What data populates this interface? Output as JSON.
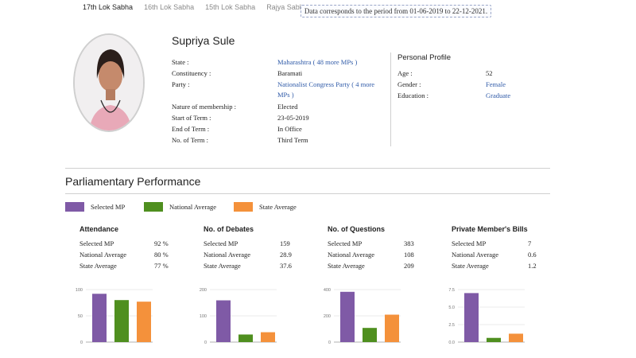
{
  "tabs": [
    {
      "label": "17th Lok Sabha",
      "active": true
    },
    {
      "label": "16th Lok Sabha",
      "active": false
    },
    {
      "label": "15th Lok Sabha",
      "active": false
    },
    {
      "label": "Rajya Sabha",
      "active": false
    }
  ],
  "notice": "Data corresponds to the period from 01-06-2019 to 22-12-2021.",
  "mp": {
    "name": "Supriya Sule",
    "details": [
      {
        "label": "State :",
        "value": "Maharashtra ( 48 more MPs )",
        "link": true
      },
      {
        "label": "Constituency :",
        "value": "Baramati",
        "link": false
      },
      {
        "label": "Party :",
        "value": "Nationalist Congress Party ( 4 more",
        "value2": "MPs )",
        "link": true
      },
      {
        "label": "Nature of membership :",
        "value": "Elected",
        "link": false
      },
      {
        "label": "Start of Term :",
        "value": "23-05-2019",
        "link": false
      },
      {
        "label": "End of Term :",
        "value": "In Office",
        "link": false
      },
      {
        "label": "No. of Term :",
        "value": "Third Term",
        "link": false
      }
    ]
  },
  "profile": {
    "title": "Personal Profile",
    "items": [
      {
        "label": "Age :",
        "value": "52",
        "link": false
      },
      {
        "label": "Gender :",
        "value": "Female",
        "link": true
      },
      {
        "label": "Education :",
        "value": "Graduate",
        "link": true
      }
    ]
  },
  "performance": {
    "title": "Parliamentary Performance",
    "legend": [
      {
        "label": "Selected MP",
        "color": "#7f5aa6"
      },
      {
        "label": "National Average",
        "color": "#4f8f1f"
      },
      {
        "label": "State Average",
        "color": "#f4913b"
      }
    ]
  },
  "chart_data": [
    {
      "type": "bar",
      "title": "Attendance",
      "rows": [
        {
          "label": "Selected MP",
          "display": "92 %"
        },
        {
          "label": "National Average",
          "display": "80 %"
        },
        {
          "label": "State Average",
          "display": "77 %"
        }
      ],
      "values": [
        92,
        80,
        77
      ],
      "ylim": [
        0,
        100
      ],
      "ticks": [
        "0",
        "50",
        "100"
      ]
    },
    {
      "type": "bar",
      "title": "No. of Debates",
      "rows": [
        {
          "label": "Selected MP",
          "display": "159"
        },
        {
          "label": "National Average",
          "display": "28.9"
        },
        {
          "label": "State Average",
          "display": "37.6"
        }
      ],
      "values": [
        159,
        28.9,
        37.6
      ],
      "ylim": [
        0,
        200
      ],
      "ticks": [
        "0",
        "100",
        "200"
      ]
    },
    {
      "type": "bar",
      "title": "No. of Questions",
      "rows": [
        {
          "label": "Selected MP",
          "display": "383"
        },
        {
          "label": "National Average",
          "display": "108"
        },
        {
          "label": "State Average",
          "display": "209"
        }
      ],
      "values": [
        383,
        108,
        209
      ],
      "ylim": [
        0,
        400
      ],
      "ticks": [
        "0",
        "200",
        "400"
      ]
    },
    {
      "type": "bar",
      "title": "Private Member's Bills",
      "rows": [
        {
          "label": "Selected MP",
          "display": "7"
        },
        {
          "label": "National Average",
          "display": "0.6"
        },
        {
          "label": "State Average",
          "display": "1.2"
        }
      ],
      "values": [
        7,
        0.6,
        1.2
      ],
      "ylim": [
        0,
        7.5
      ],
      "ticks": [
        "0.0",
        "2.5",
        "5.0",
        "7.5"
      ]
    }
  ]
}
